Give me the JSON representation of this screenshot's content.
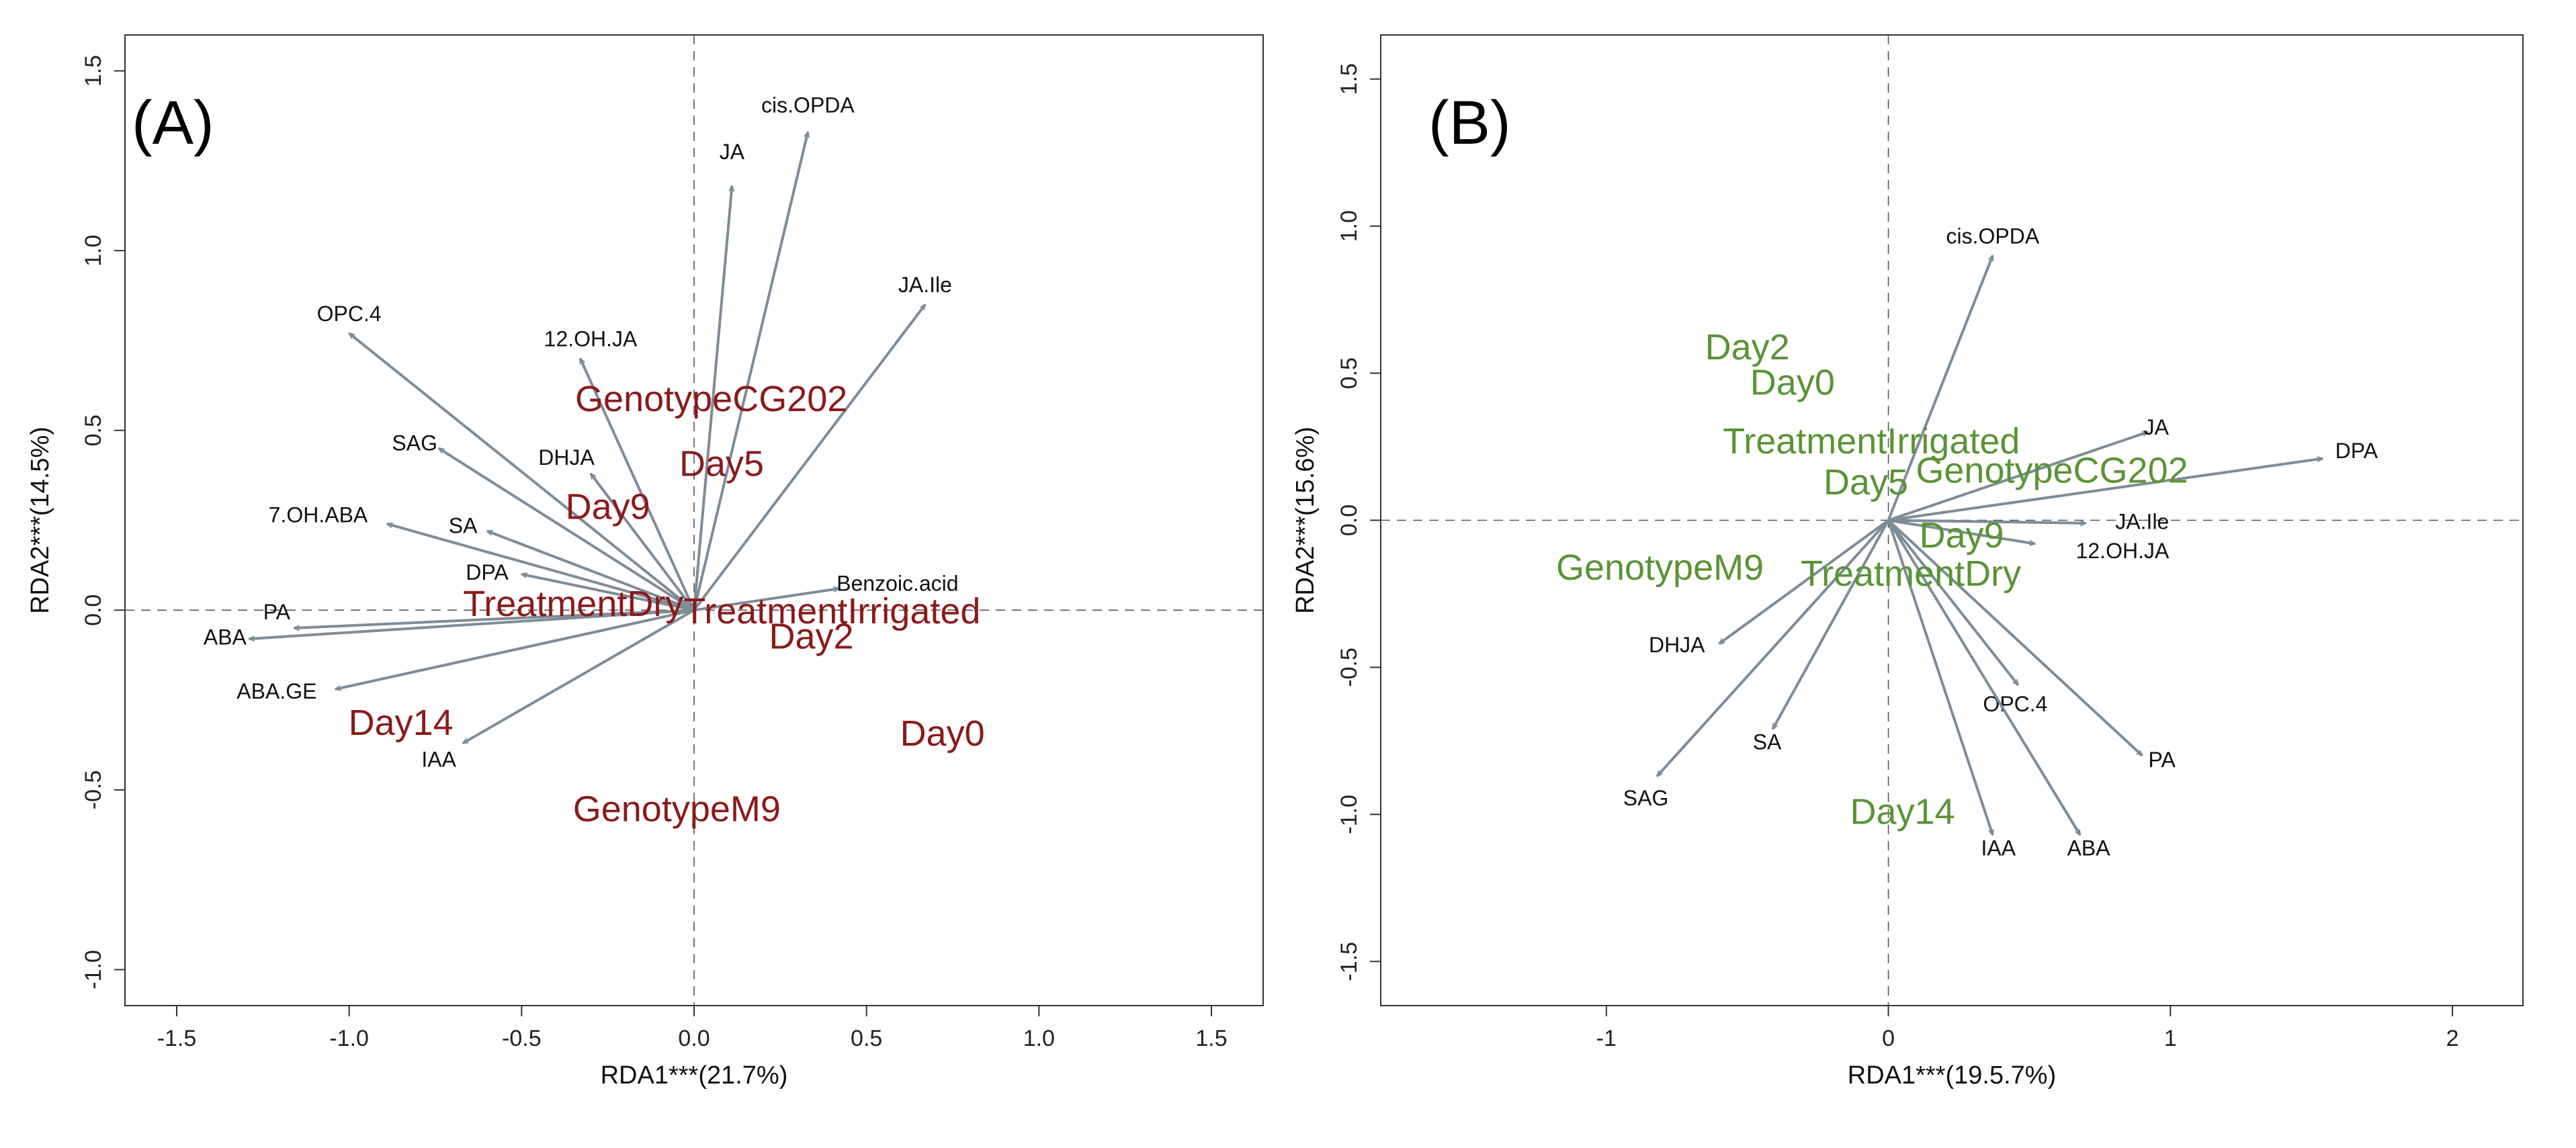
{
  "colors": {
    "arrow": "#7f8c96",
    "frame": "#333333",
    "tick_text": "#222222",
    "label_text": "#111111",
    "panel_a_text": "#8b1a1a",
    "panel_b_text": "#5a9436"
  },
  "chart_data": [
    {
      "type": "scatter",
      "subtype": "rda-biplot",
      "panel_label": "(A)",
      "xlabel": "RDA1***(21.7%)",
      "ylabel": "RDA2***(14.5%)",
      "xlim": [
        -1.65,
        1.65
      ],
      "ylim": [
        -1.1,
        1.6
      ],
      "x_ticks": [
        -1.5,
        -1.0,
        -0.5,
        0.0,
        0.5,
        1.0,
        1.5
      ],
      "x_tick_labels": [
        "-1.5",
        "-1.0",
        "-0.5",
        "0.0",
        "0.5",
        "1.0",
        "1.5"
      ],
      "y_ticks": [
        -1.0,
        -0.5,
        0.0,
        0.5,
        1.0,
        1.5
      ],
      "y_tick_labels": [
        "-1.0",
        "-0.5",
        "0.0",
        "0.5",
        "1.0",
        "1.5"
      ],
      "reference_lines": {
        "x0": true,
        "y0": true,
        "style": "dashed"
      },
      "arrows": [
        {
          "name": "cis.OPDA",
          "x": 0.33,
          "y": 1.33,
          "label_x": 0.33,
          "label_y": 1.4
        },
        {
          "name": "JA",
          "x": 0.11,
          "y": 1.18,
          "label_x": 0.11,
          "label_y": 1.27
        },
        {
          "name": "JA.Ile",
          "x": 0.67,
          "y": 0.85,
          "label_x": 0.67,
          "label_y": 0.9
        },
        {
          "name": "OPC.4",
          "x": -1.0,
          "y": 0.77,
          "label_x": -1.0,
          "label_y": 0.82
        },
        {
          "name": "12.OH.JA",
          "x": -0.33,
          "y": 0.7,
          "label_x": -0.3,
          "label_y": 0.75
        },
        {
          "name": "SAG",
          "x": -0.74,
          "y": 0.45,
          "label_x": -0.81,
          "label_y": 0.46
        },
        {
          "name": "DHJA",
          "x": -0.3,
          "y": 0.38,
          "label_x": -0.37,
          "label_y": 0.42
        },
        {
          "name": "7.OH.ABA",
          "x": -0.89,
          "y": 0.24,
          "label_x": -1.09,
          "label_y": 0.26
        },
        {
          "name": "SA",
          "x": -0.6,
          "y": 0.22,
          "label_x": -0.67,
          "label_y": 0.23
        },
        {
          "name": "DPA",
          "x": -0.5,
          "y": 0.1,
          "label_x": -0.6,
          "label_y": 0.1
        },
        {
          "name": "Benzoic.acid",
          "x": 0.42,
          "y": 0.06,
          "label_x": 0.59,
          "label_y": 0.07
        },
        {
          "name": "PA",
          "x": -1.16,
          "y": -0.05,
          "label_x": -1.21,
          "label_y": -0.01
        },
        {
          "name": "ABA",
          "x": -1.29,
          "y": -0.08,
          "label_x": -1.36,
          "label_y": -0.08
        },
        {
          "name": "ABA.GE",
          "x": -1.04,
          "y": -0.22,
          "label_x": -1.21,
          "label_y": -0.23
        },
        {
          "name": "IAA",
          "x": -0.67,
          "y": -0.37,
          "label_x": -0.74,
          "label_y": -0.42
        }
      ],
      "centroids": [
        {
          "name": "GenotypeCG202",
          "x": 0.05,
          "y": 0.58
        },
        {
          "name": "Day5",
          "x": 0.08,
          "y": 0.4
        },
        {
          "name": "Day9",
          "x": -0.25,
          "y": 0.28
        },
        {
          "name": "TreatmentDry",
          "x": -0.35,
          "y": 0.01
        },
        {
          "name": "TreatmentIrrigated",
          "x": 0.4,
          "y": -0.01
        },
        {
          "name": "Day2",
          "x": 0.34,
          "y": -0.08
        },
        {
          "name": "Day14",
          "x": -0.85,
          "y": -0.32
        },
        {
          "name": "Day0",
          "x": 0.72,
          "y": -0.35
        },
        {
          "name": "GenotypeM9",
          "x": -0.05,
          "y": -0.56
        }
      ]
    },
    {
      "type": "scatter",
      "subtype": "rda-biplot",
      "panel_label": "(B)",
      "xlabel": "RDA1***(19.5.7%)",
      "ylabel": "RDA2***(15.6%)",
      "xlim": [
        -1.8,
        2.25
      ],
      "ylim": [
        -1.65,
        1.65
      ],
      "x_ticks": [
        -1,
        0,
        1,
        2
      ],
      "x_tick_labels": [
        "-1",
        "0",
        "1",
        "2"
      ],
      "y_ticks": [
        -1.5,
        -1.0,
        -0.5,
        0.0,
        0.5,
        1.0,
        1.5
      ],
      "y_tick_labels": [
        "-1.5",
        "-1.0",
        "-0.5",
        "0.0",
        "0.5",
        "1.0",
        "1.5"
      ],
      "reference_lines": {
        "x0": true,
        "y0": true,
        "style": "dashed"
      },
      "arrows": [
        {
          "name": "cis.OPDA",
          "x": 0.37,
          "y": 0.9,
          "label_x": 0.37,
          "label_y": 0.96
        },
        {
          "name": "JA",
          "x": 0.92,
          "y": 0.3,
          "label_x": 0.95,
          "label_y": 0.31
        },
        {
          "name": "DPA",
          "x": 1.54,
          "y": 0.21,
          "label_x": 1.66,
          "label_y": 0.23
        },
        {
          "name": "JA.Ile",
          "x": 0.7,
          "y": -0.01,
          "label_x": 0.9,
          "label_y": -0.01
        },
        {
          "name": "12.OH.JA",
          "x": 0.52,
          "y": -0.08,
          "label_x": 0.83,
          "label_y": -0.11
        },
        {
          "name": "OPC.4",
          "x": 0.46,
          "y": -0.56,
          "label_x": 0.45,
          "label_y": -0.63
        },
        {
          "name": "PA",
          "x": 0.9,
          "y": -0.8,
          "label_x": 0.97,
          "label_y": -0.82
        },
        {
          "name": "IAA",
          "x": 0.37,
          "y": -1.07,
          "label_x": 0.39,
          "label_y": -1.12
        },
        {
          "name": "ABA",
          "x": 0.68,
          "y": -1.07,
          "label_x": 0.71,
          "label_y": -1.12
        },
        {
          "name": "DHJA",
          "x": -0.6,
          "y": -0.42,
          "label_x": -0.75,
          "label_y": -0.43
        },
        {
          "name": "SA",
          "x": -0.41,
          "y": -0.71,
          "label_x": -0.43,
          "label_y": -0.76
        },
        {
          "name": "SAG",
          "x": -0.82,
          "y": -0.87,
          "label_x": -0.86,
          "label_y": -0.95
        }
      ],
      "centroids": [
        {
          "name": "Day2",
          "x": -0.5,
          "y": 0.58
        },
        {
          "name": "Day0",
          "x": -0.34,
          "y": 0.46
        },
        {
          "name": "TreatmentIrrigated",
          "x": -0.06,
          "y": 0.26
        },
        {
          "name": "Day5",
          "x": -0.08,
          "y": 0.12
        },
        {
          "name": "GenotypeCG202",
          "x": 0.58,
          "y": 0.16
        },
        {
          "name": "Day9",
          "x": 0.26,
          "y": -0.06
        },
        {
          "name": "GenotypeM9",
          "x": -0.81,
          "y": -0.17
        },
        {
          "name": "TreatmentDry",
          "x": 0.08,
          "y": -0.19
        },
        {
          "name": "Day14",
          "x": 0.05,
          "y": -1.0
        }
      ]
    }
  ]
}
